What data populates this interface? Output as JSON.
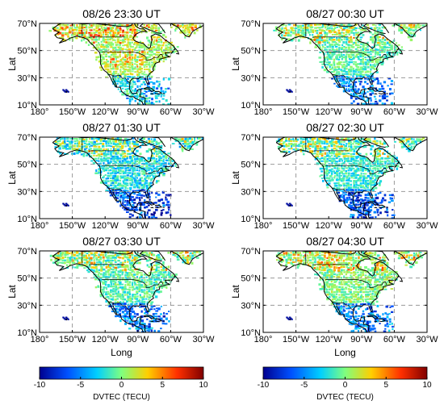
{
  "chart_data": {
    "type": "heatmap",
    "colorbar_label": "DVTEC (TECU)",
    "colorbar_ticks": [
      "-10",
      "-5",
      "0",
      "5",
      "10"
    ],
    "colorbar_range": [
      -10,
      10
    ],
    "colormap": [
      "#00008f",
      "#0050ff",
      "#00cfff",
      "#7fff7f",
      "#ffcf00",
      "#ff3000",
      "#800000"
    ],
    "xlabel": "Long",
    "ylabel": "Lat",
    "x_ticks": [
      "180°",
      "150°W",
      "120°W",
      "90°W",
      "60°W",
      "30°W"
    ],
    "y_ticks": [
      "70°N",
      "50°N",
      "30°N",
      "10°N"
    ],
    "x_range": [
      -180,
      -30
    ],
    "y_range": [
      10,
      70
    ],
    "grid": "dashed lines at 150°W, 60°W, 30°N, 50°N",
    "panels": [
      {
        "title": "08/26 23:30 UT",
        "typical_dvtec": [
          -1,
          3
        ]
      },
      {
        "title": "08/27 00:30 UT",
        "typical_dvtec": [
          -3,
          1
        ]
      },
      {
        "title": "08/27 01:30 UT",
        "typical_dvtec": [
          -5,
          0
        ]
      },
      {
        "title": "08/27 02:30 UT",
        "typical_dvtec": [
          -4,
          0
        ]
      },
      {
        "title": "08/27 03:30 UT",
        "typical_dvtec": [
          -3,
          1
        ]
      },
      {
        "title": "08/27 04:30 UT",
        "typical_dvtec": [
          -2,
          2
        ]
      }
    ]
  }
}
